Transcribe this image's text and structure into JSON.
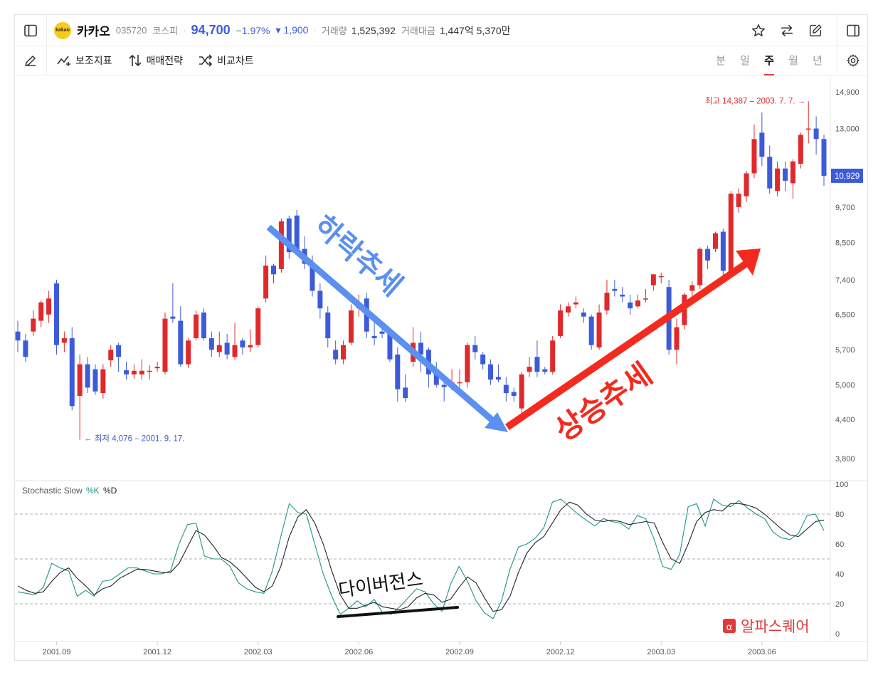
{
  "header": {
    "logo_text": "kakao",
    "stock_name": "카카오",
    "stock_code": "035720",
    "market": "코스피",
    "price": "94,700",
    "change_pct": "−1.97%",
    "change_abs": "▾ 1,900",
    "volume_label": "거래량",
    "volume_value": "1,525,392",
    "amount_label": "거래대금",
    "amount_value": "1,447억 5,370만"
  },
  "toolbar": {
    "indicators_label": "보조지표",
    "strategy_label": "매매전략",
    "compare_label": "비교차트",
    "periods": [
      "분",
      "일",
      "주",
      "월",
      "년"
    ],
    "active_period": "주"
  },
  "icons": {
    "sidebar_left": "sidebar-left-icon",
    "star": "star-icon",
    "swap": "swap-icon",
    "edit": "edit-icon",
    "sidebar_right": "sidebar-right-icon",
    "pen": "pen-icon",
    "gear": "gear-icon"
  },
  "colors": {
    "up": "#e0292b",
    "down": "#3d5bd9",
    "downtrend_arrow": "#5b8ff0",
    "uptrend_arrow": "#f52a1e",
    "k_line": "#1f9488",
    "d_line": "#222222",
    "price_tag": "#3d5bd9"
  },
  "chart_data": [
    {
      "type": "candlestick",
      "frequency": "weekly",
      "y_ticks": [
        3800,
        4400,
        5000,
        5700,
        6500,
        7400,
        8500,
        9700,
        13000,
        14900
      ],
      "y_scale": "log",
      "ylim": [
        3500,
        15800
      ],
      "x_ticks": [
        "2001.09",
        "2001.12",
        "2002.03",
        "2002.06",
        "2002.09",
        "2002.12",
        "2003.03",
        "2003.06"
      ],
      "last_price_tag": "10,929",
      "min_annotation": "← 최저 4,076 – 2001. 9. 17.",
      "max_annotation": "최고 14,387 – 2003. 7. 7. →",
      "annotations": [
        "하락추세",
        "상승추세"
      ],
      "candles": [
        [
          6100,
          5900,
          6350,
          5650
        ],
        [
          5900,
          5550,
          6050,
          5450
        ],
        [
          6100,
          6400,
          6600,
          6000
        ],
        [
          6350,
          6800,
          6850,
          6200
        ],
        [
          6500,
          6900,
          7100,
          6300
        ],
        [
          7300,
          5800,
          7400,
          5600
        ],
        [
          5850,
          5950,
          6100,
          5650
        ],
        [
          5950,
          4620,
          6200,
          4550
        ],
        [
          4800,
          5400,
          5600,
          4076
        ],
        [
          5400,
          4950,
          5550,
          4850
        ],
        [
          5300,
          4880,
          5400,
          4820
        ],
        [
          4850,
          5300,
          5400,
          4750
        ],
        [
          5480,
          5700,
          5800,
          5350
        ],
        [
          5800,
          5550,
          5850,
          5250
        ],
        [
          5280,
          5200,
          5450,
          5100
        ],
        [
          5200,
          5270,
          5400,
          5120
        ],
        [
          5200,
          5270,
          5500,
          5100
        ],
        [
          5250,
          5270,
          5380,
          5100
        ],
        [
          5320,
          5350,
          5450,
          5250
        ],
        [
          5250,
          6400,
          6550,
          5200
        ],
        [
          6450,
          6400,
          7300,
          6300
        ],
        [
          6350,
          5400,
          6700,
          5350
        ],
        [
          5400,
          5900,
          5950,
          5320
        ],
        [
          5950,
          6500,
          6600,
          5900
        ],
        [
          6550,
          5950,
          6650,
          5900
        ],
        [
          5950,
          5700,
          6100,
          5550
        ],
        [
          5650,
          5800,
          6100,
          5550
        ],
        [
          5850,
          5600,
          6050,
          5500
        ],
        [
          5550,
          5800,
          6300,
          5500
        ],
        [
          5900,
          5750,
          5950,
          5600
        ],
        [
          5750,
          5800,
          6150,
          5650
        ],
        [
          5800,
          6650,
          6700,
          5750
        ],
        [
          6900,
          7800,
          8100,
          6800
        ],
        [
          7800,
          7550,
          7850,
          7300
        ],
        [
          7700,
          9200,
          9300,
          7600
        ],
        [
          9300,
          8200,
          9400,
          8000
        ],
        [
          9400,
          8200,
          9600,
          8150
        ],
        [
          8300,
          7850,
          8700,
          7700
        ],
        [
          7850,
          7100,
          8100,
          6950
        ],
        [
          7100,
          6650,
          7300,
          6400
        ],
        [
          6550,
          5950,
          6700,
          5750
        ],
        [
          5700,
          5500,
          5900,
          5400
        ],
        [
          5500,
          5800,
          5900,
          5400
        ],
        [
          5850,
          6600,
          6750,
          5800
        ],
        [
          6650,
          6800,
          7000,
          6450
        ],
        [
          6900,
          6100,
          7050,
          5950
        ],
        [
          6000,
          5950,
          6400,
          5800
        ],
        [
          6100,
          6050,
          6300,
          5950
        ],
        [
          6050,
          5500,
          6150,
          5450
        ],
        [
          5600,
          4920,
          5750,
          4700
        ],
        [
          4950,
          4760,
          5200,
          4700
        ],
        [
          5450,
          5850,
          6200,
          5350
        ],
        [
          5850,
          5600,
          6100,
          5250
        ],
        [
          5700,
          5200,
          5750,
          4950
        ],
        [
          5300,
          5000,
          5450,
          4950
        ],
        [
          5000,
          4960,
          5050,
          4700
        ],
        [
          5000,
          5050,
          5300,
          4900
        ],
        [
          5050,
          5050,
          5300,
          4950
        ],
        [
          5050,
          5800,
          5850,
          4950
        ],
        [
          5800,
          5650,
          6000,
          5500
        ],
        [
          5600,
          5400,
          5650,
          5300
        ],
        [
          5400,
          5100,
          5500,
          5000
        ],
        [
          5150,
          5100,
          5400,
          5050
        ],
        [
          5000,
          4850,
          5150,
          4700
        ],
        [
          4870,
          4800,
          4950,
          4700
        ],
        [
          4580,
          5200,
          5250,
          4500
        ],
        [
          5250,
          5350,
          5550,
          5150
        ],
        [
          5550,
          5250,
          5900,
          5150
        ],
        [
          5300,
          5250,
          5350,
          5200
        ],
        [
          5250,
          5900,
          6000,
          5200
        ],
        [
          6000,
          6600,
          6750,
          5950
        ],
        [
          6550,
          6700,
          6800,
          6450
        ],
        [
          6750,
          6800,
          6950,
          6650
        ],
        [
          6550,
          6450,
          6650,
          6300
        ],
        [
          6450,
          5800,
          6500,
          5700
        ],
        [
          5750,
          6550,
          6750,
          5700
        ],
        [
          6600,
          7050,
          7400,
          6500
        ],
        [
          7150,
          7100,
          7400,
          6950
        ],
        [
          7000,
          6950,
          7200,
          6800
        ],
        [
          6800,
          6650,
          7000,
          6500
        ],
        [
          6700,
          6850,
          7000,
          6650
        ],
        [
          6900,
          6900,
          7150,
          6800
        ],
        [
          7250,
          7550,
          7550,
          7100
        ],
        [
          7500,
          7500,
          7600,
          7300
        ],
        [
          7200,
          5700,
          7400,
          5600
        ],
        [
          5700,
          6200,
          6400,
          5400
        ],
        [
          6250,
          7000,
          7050,
          6150
        ],
        [
          7100,
          7250,
          7350,
          6900
        ],
        [
          7250,
          8300,
          8350,
          7150
        ],
        [
          8300,
          7950,
          8400,
          7700
        ],
        [
          8300,
          8800,
          8850,
          8200
        ],
        [
          8850,
          7650,
          8950,
          7400
        ],
        [
          7600,
          10200,
          10300,
          7500
        ],
        [
          9700,
          10200,
          10400,
          9500
        ],
        [
          10100,
          11000,
          11100,
          9900
        ],
        [
          11000,
          12500,
          13200,
          10800
        ],
        [
          12800,
          11700,
          13800,
          11300
        ],
        [
          11700,
          10400,
          12200,
          10200
        ],
        [
          10300,
          11200,
          11500,
          10100
        ],
        [
          11200,
          10700,
          11500,
          10300
        ],
        [
          10600,
          11500,
          11600,
          10000
        ],
        [
          11400,
          12700,
          12800,
          11200
        ],
        [
          13000,
          13000,
          14387,
          12300
        ],
        [
          13000,
          12500,
          13600,
          11800
        ],
        [
          12500,
          10900,
          12700,
          10500
        ]
      ]
    },
    {
      "type": "line",
      "title": "Stochastic Slow",
      "series_names": [
        "%K",
        "%D"
      ],
      "ylim": [
        0,
        100
      ],
      "y_ticks": [
        0,
        20,
        40,
        60,
        80,
        100
      ],
      "reference_lines": [
        20,
        50,
        80
      ],
      "annotation": "다이버전스",
      "series": [
        {
          "name": "%K",
          "values": [
            28,
            27,
            26,
            31,
            47,
            44,
            42,
            25,
            29,
            25,
            35,
            36,
            40,
            44,
            44,
            42,
            40,
            40,
            42,
            60,
            73,
            74,
            52,
            50,
            50,
            45,
            34,
            30,
            28,
            27,
            42,
            65,
            87,
            81,
            80,
            60,
            40,
            25,
            13,
            17,
            22,
            18,
            23,
            14,
            13,
            18,
            24,
            30,
            28,
            20,
            15,
            33,
            45,
            35,
            22,
            14,
            10,
            22,
            43,
            58,
            60,
            64,
            71,
            88,
            90,
            85,
            80,
            76,
            72,
            77,
            75,
            74,
            70,
            79,
            77,
            63,
            45,
            43,
            53,
            85,
            87,
            72,
            90,
            86,
            85,
            89,
            84,
            80,
            77,
            68,
            64,
            63,
            67,
            79,
            80,
            69
          ]
        },
        {
          "name": "%D",
          "values": [
            32,
            29,
            27,
            28,
            35,
            41,
            44,
            37,
            32,
            26,
            30,
            32,
            37,
            40,
            43,
            43,
            42,
            41,
            41,
            47,
            58,
            69,
            66,
            59,
            51,
            48,
            43,
            37,
            31,
            28,
            32,
            45,
            65,
            78,
            83,
            74,
            60,
            42,
            26,
            17,
            17,
            19,
            21,
            18,
            17,
            16,
            18,
            24,
            27,
            26,
            21,
            23,
            31,
            38,
            34,
            24,
            15,
            16,
            25,
            41,
            54,
            61,
            65,
            74,
            83,
            88,
            86,
            80,
            76,
            75,
            76,
            75,
            73,
            74,
            75,
            74,
            61,
            50,
            47,
            60,
            75,
            81,
            83,
            82,
            87,
            87,
            86,
            84,
            80,
            75,
            70,
            66,
            65,
            70,
            75,
            76
          ]
        }
      ]
    }
  ],
  "branding": {
    "watermark": "알파스퀘어"
  }
}
